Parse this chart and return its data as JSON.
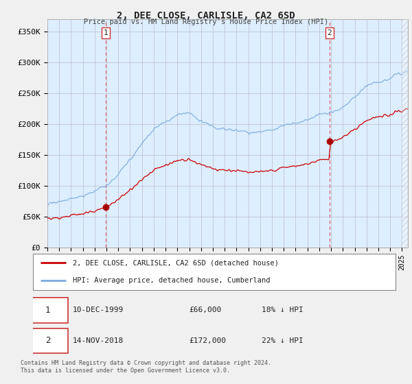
{
  "title": "2, DEE CLOSE, CARLISLE, CA2 6SD",
  "subtitle": "Price paid vs. HM Land Registry's House Price Index (HPI)",
  "ylim": [
    0,
    370000
  ],
  "yticks": [
    0,
    50000,
    100000,
    150000,
    200000,
    250000,
    300000,
    350000
  ],
  "ytick_labels": [
    "£0",
    "£50K",
    "£100K",
    "£150K",
    "£200K",
    "£250K",
    "£300K",
    "£350K"
  ],
  "line1_color": "#cc0000",
  "line2_color": "#7aaadd",
  "marker_color": "#aa0000",
  "sale1_date_x": 1999.94,
  "sale1_price": 66000,
  "sale2_date_x": 2018.87,
  "sale2_price": 172000,
  "dashed1_x": 1999.94,
  "dashed2_x": 2018.87,
  "legend_label1": "2, DEE CLOSE, CARLISLE, CA2 6SD (detached house)",
  "legend_label2": "HPI: Average price, detached house, Cumberland",
  "table_row1_num": "1",
  "table_row1_date": "10-DEC-1999",
  "table_row1_price": "£66,000",
  "table_row1_hpi": "18% ↓ HPI",
  "table_row2_num": "2",
  "table_row2_date": "14-NOV-2018",
  "table_row2_price": "£172,000",
  "table_row2_hpi": "22% ↓ HPI",
  "footnote": "Contains HM Land Registry data © Crown copyright and database right 2024.\nThis data is licensed under the Open Government Licence v3.0.",
  "bg_color": "#f0f0f0",
  "plot_bg_color": "#ddeeff",
  "xmin": 1995.0,
  "xmax": 2025.5
}
